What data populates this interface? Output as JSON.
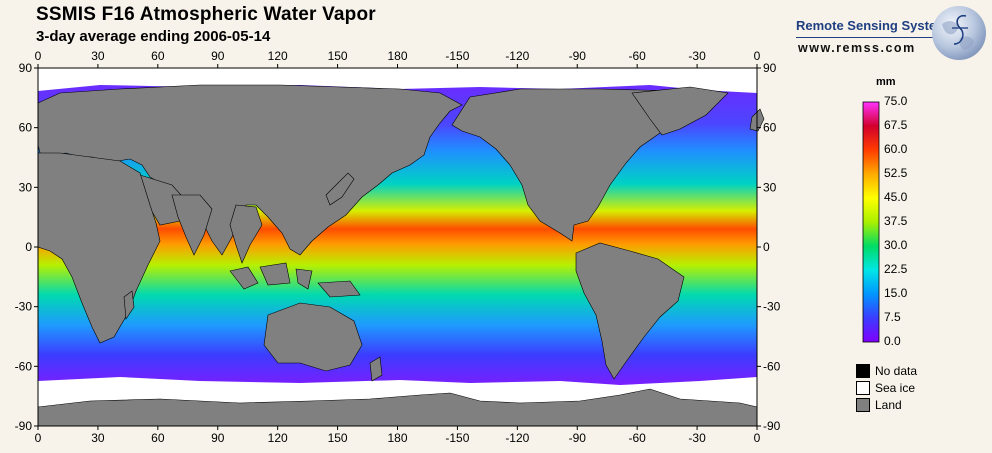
{
  "header": {
    "title": "SSMIS F16 Atmospheric Water Vapor",
    "subtitle": "3-day average ending 2006-05-14"
  },
  "brand": {
    "name": "Remote Sensing Systems",
    "url": "www.remss.com",
    "color": "#1f3f82",
    "icon": "globe-logo-icon"
  },
  "map": {
    "projection": "equirectangular",
    "lon_tick_labels": [
      "0",
      "30",
      "60",
      "90",
      "120",
      "150",
      "180",
      "-150",
      "-120",
      "-90",
      "-60",
      "-30",
      "0"
    ],
    "lat_tick_labels": [
      "90",
      "60",
      "30",
      "0",
      "-30",
      "-60",
      "-90"
    ],
    "land_color": "#808080",
    "sea_ice_color": "#ffffff",
    "no_data_color": "#000000"
  },
  "colorbar": {
    "unit": "mm",
    "labels": [
      "75.0",
      "67.5",
      "60.0",
      "52.5",
      "45.0",
      "37.5",
      "30.0",
      "22.5",
      "15.0",
      "7.5",
      "0.0"
    ],
    "min": 0,
    "max": 75,
    "stops": [
      "#8000ff",
      "#3c3cff",
      "#0096ff",
      "#00e6e6",
      "#00dc64",
      "#aaf000",
      "#ffff00",
      "#ffaa00",
      "#ff3c00",
      "#d2002d",
      "#ff32ff"
    ]
  },
  "legend": {
    "items": [
      {
        "label": "No data",
        "color": "#000000"
      },
      {
        "label": "Sea ice",
        "color": "#ffffff"
      },
      {
        "label": "Land",
        "color": "#808080"
      }
    ]
  }
}
